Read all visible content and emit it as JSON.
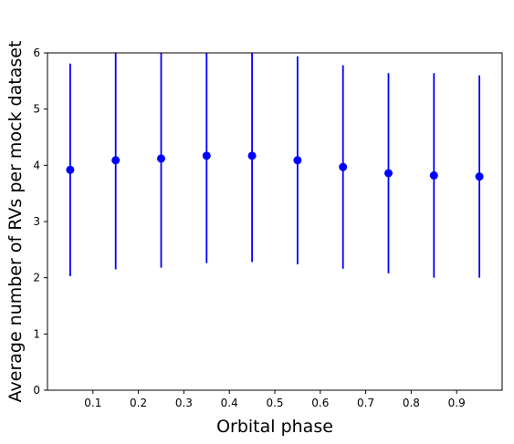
{
  "chart_data": {
    "type": "scatter",
    "title": "",
    "xlabel": "Orbital phase",
    "ylabel": "Average number of RVs per mock dataset",
    "xlim": [
      0.0,
      1.0
    ],
    "ylim": [
      0,
      6
    ],
    "xticks": [
      "0.1",
      "0.2",
      "0.3",
      "0.4",
      "0.5",
      "0.6",
      "0.7",
      "0.8",
      "0.9"
    ],
    "yticks": [
      "0",
      "1",
      "2",
      "3",
      "4",
      "5",
      "6"
    ],
    "grid": false,
    "legend": "none",
    "color": "#0000ff",
    "series": [
      {
        "x": [
          0.05,
          0.15,
          0.25,
          0.35,
          0.45,
          0.55,
          0.65,
          0.75,
          0.85,
          0.95
        ],
        "y": [
          3.92,
          4.09,
          4.12,
          4.17,
          4.17,
          4.09,
          3.97,
          3.86,
          3.82,
          3.8
        ],
        "y_low": [
          2.03,
          2.15,
          2.18,
          2.26,
          2.28,
          2.24,
          2.16,
          2.08,
          2.0,
          2.0
        ],
        "y_high": [
          5.81,
          6.05,
          6.06,
          6.08,
          6.06,
          5.94,
          5.78,
          5.64,
          5.64,
          5.6
        ]
      }
    ]
  }
}
